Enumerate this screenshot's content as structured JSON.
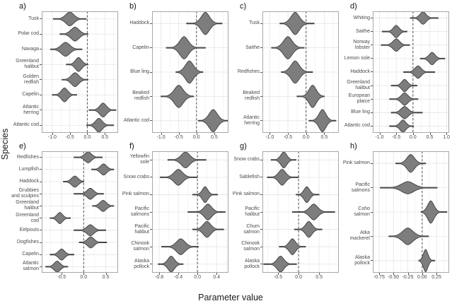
{
  "figure": {
    "ylabel": "Species",
    "xlabel": "Parameter value"
  },
  "style": {
    "violin_fill": "#7d7d7d",
    "violin_stroke": "#3d3d3d",
    "grid_major": "#e4e4e4",
    "grid_minor": "#f1f1f1",
    "panel_border": "#a8a8a8",
    "zero_line": "#4a4a4a",
    "tick_color": "#555555",
    "text_color": "#4a4a4a"
  },
  "chart_data": [
    {
      "panel": "a)",
      "type": "violin",
      "orientation": "horizontal",
      "xlim": [
        -1.3,
        0.88
      ],
      "xticks": [
        -1.0,
        -0.5,
        0.0,
        0.5
      ],
      "xtick_labels": [
        "-1.0",
        "-0.5",
        "0.0",
        "0.5"
      ],
      "zero_line": 0,
      "species": [
        {
          "label": "Tusk",
          "center": -0.5,
          "body": [
            -0.72,
            -0.28
          ],
          "tails": [
            -0.97,
            -0.03
          ],
          "amp": 1
        },
        {
          "label": "Polar cod",
          "center": -0.35,
          "body": [
            -0.57,
            -0.13
          ],
          "tails": [
            -0.78,
            0.02
          ],
          "amp": 1
        },
        {
          "label": "Navaga",
          "center": -0.62,
          "body": [
            -0.85,
            -0.39
          ],
          "tails": [
            -1.05,
            -0.15
          ],
          "amp": 1
        },
        {
          "label": "Greenland halibut",
          "center": -0.25,
          "body": [
            -0.42,
            -0.08
          ],
          "tails": [
            -0.6,
            0.02
          ],
          "amp": 1
        },
        {
          "label": "Golden redfish",
          "center": -0.35,
          "body": [
            -0.55,
            -0.15
          ],
          "tails": [
            -0.72,
            0.02
          ],
          "amp": 1
        },
        {
          "label": "Capelin",
          "center": -0.65,
          "body": [
            -0.82,
            -0.48
          ],
          "tails": [
            -1.0,
            -0.3
          ],
          "amp": 1
        },
        {
          "label": "Atlantic herring",
          "center": 0.45,
          "body": [
            0.27,
            0.63
          ],
          "tails": [
            0.05,
            0.82
          ],
          "amp": 1
        },
        {
          "label": "Atlantic cod",
          "center": 0.33,
          "body": [
            0.15,
            0.51
          ],
          "tails": [
            -0.02,
            0.75
          ],
          "amp": 1
        }
      ]
    },
    {
      "panel": "b)",
      "type": "violin",
      "orientation": "horizontal",
      "xlim": [
        -1.25,
        0.9
      ],
      "xticks": [
        -1.0,
        -0.5,
        0.0,
        0.5
      ],
      "xtick_labels": [
        "-1.0",
        "-0.5",
        "0.0",
        "0.5"
      ],
      "zero_line": 0,
      "species": [
        {
          "label": "Haddock",
          "center": 0.25,
          "body": [
            0.03,
            0.47
          ],
          "tails": [
            -0.28,
            0.72
          ],
          "amp": 1
        },
        {
          "label": "Capelin",
          "center": -0.35,
          "body": [
            -0.58,
            -0.12
          ],
          "tails": [
            -0.85,
            0.25
          ],
          "amp": 1
        },
        {
          "label": "Blue ling",
          "center": -0.2,
          "body": [
            -0.42,
            0.02
          ],
          "tails": [
            -0.58,
            0.18
          ],
          "amp": 1
        },
        {
          "label": "Beaked redfish",
          "center": -0.5,
          "body": [
            -0.74,
            -0.26
          ],
          "tails": [
            -1.0,
            -0.08
          ],
          "amp": 1
        },
        {
          "label": "Atlantic cod",
          "center": 0.47,
          "body": [
            0.25,
            0.69
          ],
          "tails": [
            0.05,
            0.88
          ],
          "amp": 1
        }
      ]
    },
    {
      "panel": "c)",
      "type": "violin",
      "orientation": "horizontal",
      "xlim": [
        -1.2,
        0.9
      ],
      "xticks": [
        -1.0,
        -0.5,
        0.0,
        0.5
      ],
      "xtick_labels": [
        "-1.0",
        "-0.5",
        "0.0",
        "0.5"
      ],
      "zero_line": 0,
      "species": [
        {
          "label": "Tusk",
          "center": -0.3,
          "body": [
            -0.52,
            -0.08
          ],
          "tails": [
            -0.72,
            0.22
          ],
          "amp": 1
        },
        {
          "label": "Saithe",
          "center": -0.5,
          "body": [
            -0.73,
            -0.27
          ],
          "tails": [
            -0.95,
            -0.05
          ],
          "amp": 1
        },
        {
          "label": "Redfishes",
          "center": -0.3,
          "body": [
            -0.52,
            -0.08
          ],
          "tails": [
            -0.68,
            0.18
          ],
          "amp": 1
        },
        {
          "label": "Beaked redfish",
          "center": 0.18,
          "body": [
            0.0,
            0.38
          ],
          "tails": [
            -0.25,
            0.5
          ],
          "amp": 1
        },
        {
          "label": "Atlantic herring",
          "center": 0.45,
          "body": [
            0.26,
            0.62
          ],
          "tails": [
            0.08,
            0.82
          ],
          "amp": 1
        }
      ]
    },
    {
      "panel": "d)",
      "type": "violin",
      "orientation": "horizontal",
      "xlim": [
        -1.2,
        1.08
      ],
      "xticks": [
        -1.0,
        -0.5,
        0.0,
        0.5,
        1.0
      ],
      "xtick_labels": [
        "-1.0",
        "-0.5",
        "0.0",
        "0.5",
        "1.0"
      ],
      "zero_line": 0,
      "species": [
        {
          "label": "Whiting",
          "center": 0.3,
          "body": [
            0.13,
            0.48
          ],
          "tails": [
            -0.08,
            0.75
          ],
          "amp": 1
        },
        {
          "label": "Saithe",
          "center": -0.5,
          "body": [
            -0.66,
            -0.33
          ],
          "tails": [
            -0.92,
            -0.18
          ],
          "amp": 1
        },
        {
          "label": "Norway lobster",
          "center": -0.5,
          "body": [
            -0.7,
            -0.32
          ],
          "tails": [
            -0.95,
            -0.1
          ],
          "amp": 1
        },
        {
          "label": "Lemon sole",
          "center": 0.57,
          "body": [
            0.4,
            0.74
          ],
          "tails": [
            0.22,
            0.95
          ],
          "amp": 1
        },
        {
          "label": "Haddock",
          "center": 0.15,
          "body": [
            -0.02,
            0.34
          ],
          "tails": [
            -0.28,
            0.65
          ],
          "amp": 1
        },
        {
          "label": "Greenland halibut",
          "center": -0.25,
          "body": [
            -0.42,
            -0.09
          ],
          "tails": [
            -0.65,
            0.12
          ],
          "amp": 1
        },
        {
          "label": "European plaice",
          "center": -0.25,
          "body": [
            -0.45,
            -0.07
          ],
          "tails": [
            -0.7,
            0.15
          ],
          "amp": 1
        },
        {
          "label": "Blue ling",
          "center": -0.25,
          "body": [
            -0.45,
            -0.05
          ],
          "tails": [
            -0.65,
            0.28
          ],
          "amp": 1
        },
        {
          "label": "Atlantic cod",
          "center": -0.3,
          "body": [
            -0.47,
            -0.14
          ],
          "tails": [
            -0.7,
            0.02
          ],
          "amp": 1
        }
      ]
    },
    {
      "panel": "e)",
      "type": "violin",
      "orientation": "horizontal",
      "xlim": [
        -0.95,
        0.78
      ],
      "xticks": [
        -0.5,
        0.0,
        0.5
      ],
      "xtick_labels": [
        "-0.5",
        "0.0",
        "0.5"
      ],
      "zero_line": 0,
      "species": [
        {
          "label": "Redfishes",
          "center": 0.1,
          "body": [
            -0.04,
            0.24
          ],
          "tails": [
            -0.22,
            0.42
          ],
          "amp": 1
        },
        {
          "label": "Lumpfish",
          "center": 0.45,
          "body": [
            0.31,
            0.58
          ],
          "tails": [
            0.18,
            0.68
          ],
          "amp": 1
        },
        {
          "label": "Haddock",
          "center": -0.2,
          "body": [
            -0.34,
            -0.06
          ],
          "tails": [
            -0.46,
            0.0
          ],
          "amp": 1
        },
        {
          "label": "Grubbies and sculpins",
          "center": 0.15,
          "body": [
            0.01,
            0.29
          ],
          "tails": [
            -0.22,
            0.45
          ],
          "amp": 1
        },
        {
          "label": "Greenland halibut",
          "center": 0.44,
          "body": [
            0.3,
            0.58
          ],
          "tails": [
            0.2,
            0.68
          ],
          "amp": 1
        },
        {
          "label": "Greenland cod",
          "center": -0.54,
          "body": [
            -0.66,
            -0.42
          ],
          "tails": [
            -0.76,
            -0.3
          ],
          "amp": 1
        },
        {
          "label": "Eelpouts",
          "center": 0.15,
          "body": [
            0.0,
            0.3
          ],
          "tails": [
            -0.22,
            0.5
          ],
          "amp": 1
        },
        {
          "label": "Dogfishes",
          "center": 0.16,
          "body": [
            0.02,
            0.3
          ],
          "tails": [
            -0.1,
            0.52
          ],
          "amp": 1
        },
        {
          "label": "Capelin",
          "center": -0.5,
          "body": [
            -0.63,
            -0.37
          ],
          "tails": [
            -0.76,
            -0.22
          ],
          "amp": 1
        },
        {
          "label": "Atlantic salmon",
          "center": -0.6,
          "body": [
            -0.73,
            -0.47
          ],
          "tails": [
            -0.86,
            -0.36
          ],
          "amp": 1
        }
      ]
    },
    {
      "panel": "f)",
      "type": "violin",
      "orientation": "horizontal",
      "xlim": [
        -0.95,
        0.65
      ],
      "xticks": [
        -0.8,
        -0.4,
        0.0,
        0.4
      ],
      "xtick_labels": [
        "-0.8",
        "-0.4",
        "0.0",
        "0.4"
      ],
      "zero_line": 0,
      "species": [
        {
          "label": "Yellowfin sole",
          "center": -0.25,
          "body": [
            -0.42,
            -0.08
          ],
          "tails": [
            -0.62,
            0.18
          ],
          "amp": 1
        },
        {
          "label": "Snow crabs",
          "center": -0.4,
          "body": [
            -0.57,
            -0.23
          ],
          "tails": [
            -0.78,
            0.0
          ],
          "amp": 1
        },
        {
          "label": "Pink salmon",
          "center": 0.16,
          "body": [
            0.05,
            0.27
          ],
          "tails": [
            -0.1,
            0.42
          ],
          "amp": 1
        },
        {
          "label": "Pacific salmons",
          "center": 0.22,
          "body": [
            0.07,
            0.37
          ],
          "tails": [
            -0.2,
            0.58
          ],
          "amp": 1
        },
        {
          "label": "Pacific halibut",
          "center": 0.2,
          "body": [
            0.05,
            0.35
          ],
          "tails": [
            -0.1,
            0.55
          ],
          "amp": 1
        },
        {
          "label": "Chinook salmon",
          "center": -0.35,
          "body": [
            -0.52,
            -0.18
          ],
          "tails": [
            -0.75,
            0.02
          ],
          "amp": 1
        },
        {
          "label": "Alaska pollock",
          "center": -0.55,
          "body": [
            -0.68,
            -0.42
          ],
          "tails": [
            -0.82,
            -0.3
          ],
          "amp": 1
        }
      ]
    },
    {
      "panel": "g)",
      "type": "violin",
      "orientation": "horizontal",
      "xlim": [
        -0.88,
        0.98
      ],
      "xticks": [
        -0.5,
        0.0,
        0.5
      ],
      "xtick_labels": [
        "-0.5",
        "0.0",
        "0.5"
      ],
      "zero_line": 0,
      "species": [
        {
          "label": "Snow crabs",
          "center": -0.36,
          "body": [
            -0.5,
            -0.22
          ],
          "tails": [
            -0.67,
            -0.06
          ],
          "amp": 1
        },
        {
          "label": "Sablefish",
          "center": -0.4,
          "body": [
            -0.56,
            -0.24
          ],
          "tails": [
            -0.76,
            0.0
          ],
          "amp": 1
        },
        {
          "label": "Pink salmon",
          "center": 0.2,
          "body": [
            0.07,
            0.33
          ],
          "tails": [
            -0.06,
            0.5
          ],
          "amp": 1
        },
        {
          "label": "Pacific halibut",
          "center": 0.37,
          "body": [
            0.18,
            0.55
          ],
          "tails": [
            -0.15,
            0.88
          ],
          "amp": 1
        },
        {
          "label": "Chum salmon",
          "center": 0.25,
          "body": [
            0.1,
            0.4
          ],
          "tails": [
            -0.1,
            0.57
          ],
          "amp": 1
        },
        {
          "label": "Chinook salmon",
          "center": -0.15,
          "body": [
            -0.3,
            -0.01
          ],
          "tails": [
            -0.47,
            0.17
          ],
          "amp": 1
        },
        {
          "label": "Alaska pollock",
          "center": -0.44,
          "body": [
            -0.6,
            -0.28
          ],
          "tails": [
            -0.85,
            -0.05
          ],
          "amp": 1
        }
      ]
    },
    {
      "panel": "h)",
      "type": "violin",
      "orientation": "horizontal",
      "xlim": [
        -0.86,
        0.47
      ],
      "xticks": [
        -0.75,
        -0.5,
        -0.25,
        0.0,
        0.25
      ],
      "xtick_labels": [
        "-0.75",
        "-0.50",
        "-0.25",
        "0.00",
        "0.25"
      ],
      "zero_line": 0,
      "species": [
        {
          "label": "Pink salmon",
          "center": -0.2,
          "body": [
            -0.33,
            -0.08
          ],
          "tails": [
            -0.46,
            0.06
          ],
          "amp": 0.8
        },
        {
          "label": "Pacific salmons",
          "center": -0.25,
          "body": [
            -0.45,
            -0.04
          ],
          "tails": [
            -0.73,
            0.26
          ],
          "amp": 0.55
        },
        {
          "label": "Coho salmon",
          "center": 0.15,
          "body": [
            0.05,
            0.26
          ],
          "tails": [
            -0.02,
            0.43
          ],
          "amp": 1
        },
        {
          "label": "Atka mackerel",
          "center": -0.25,
          "body": [
            -0.43,
            -0.09
          ],
          "tails": [
            -0.58,
            0.11
          ],
          "amp": 0.75
        },
        {
          "label": "Alaska pollock",
          "center": 0.06,
          "body": [
            -0.01,
            0.14
          ],
          "tails": [
            -0.06,
            0.22
          ],
          "amp": 1
        }
      ]
    }
  ]
}
